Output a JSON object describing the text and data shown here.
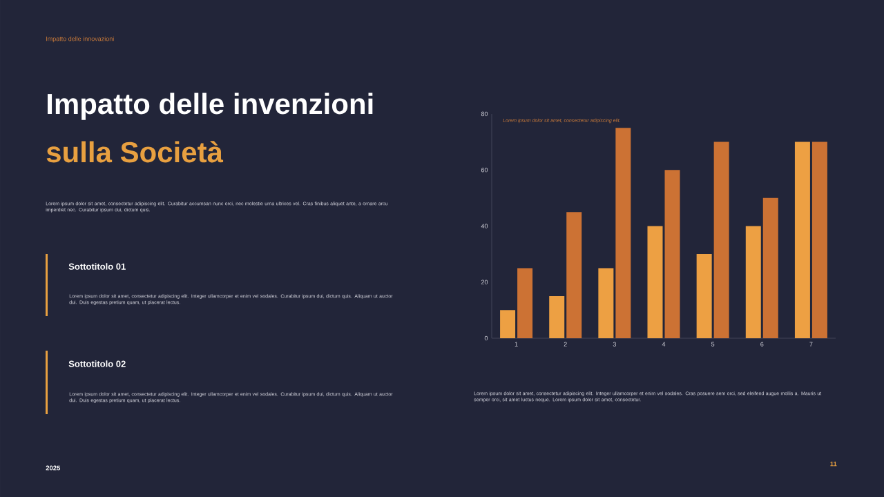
{
  "chart_data": {
    "type": "bar",
    "title": "Impatto delle invenzioni",
    "subtitle": "sulla Società",
    "categories": [
      "1",
      "2",
      "3",
      "4",
      "5",
      "6",
      "7"
    ],
    "series": [
      {
        "color": "#eda043",
        "values": [
          10,
          15,
          25,
          40,
          30,
          40,
          70
        ]
      },
      {
        "color": "#cc7234",
        "values": [
          25,
          45,
          75,
          60,
          70,
          50,
          70
        ]
      }
    ],
    "ylim": [
      0,
      80
    ],
    "yticks": [
      0,
      20,
      40,
      60,
      80
    ],
    "annotations": [
      "Impatto delle innovazioni",
      "Lorem ipsum dolor sit amet, consectetur adipiscing elit. Curabitur accumsan nunc orci, nec molestie urna ultrices vel. Cras finibus aliquet ante, a ornare arcu imperdiet nec.  Curabitur ipsum dui, dictum quis.",
      "Sottotitolo 01",
      "Lorem ipsum dolor sit amet, consectetur adipiscing elit. Integer ullamcorper et enim vel sodales.  Curabitur ipsum dui, dictum quis. Aliquam ut auctor dui. Duis egestas pretium quam, ut placerat lectus.",
      "Sottotitolo 02",
      "Lorem ipsum dolor sit amet, consectetur adipiscing elit. Integer ullamcorper et enim vel sodales.  Curabitur ipsum dui, dictum quis. Aliquam ut auctor dui. Duis egestas pretium quam, ut placerat lectus.",
      "Lorem ipsum dolor sit amet, consectetur adipiscing elit.",
      "Lorem ipsum dolor sit amet, consectetur adipiscing elit.  Integer ullamcorper et enim vel sodales. Cras posuere sem orci, sed eleifend augue mollis a. Mauris ut semper orci, sit amet luctus neque. Lorem ipsum dolor sit amet, consectetur.",
      "2025",
      "11"
    ]
  }
}
